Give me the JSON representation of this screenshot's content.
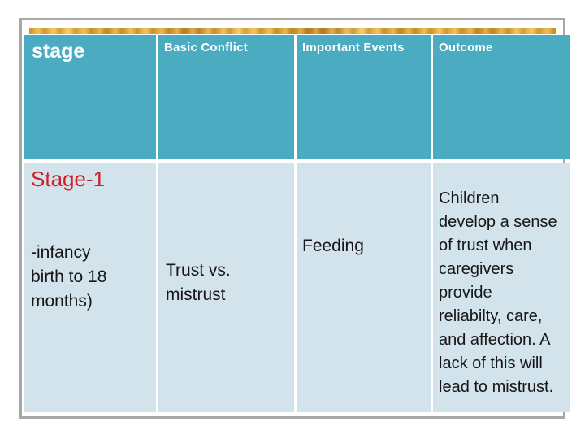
{
  "slide": {
    "kind": "presentation-table-slide",
    "colors": {
      "header_bg": "#4babc0",
      "body_bg": "#d3e3eb",
      "accent_red": "#cc2127",
      "frame_gray": "#a8a8a8",
      "gold_bar": "#e2a737",
      "header_text": "#ffffff",
      "body_text": "#161616"
    }
  },
  "table": {
    "columns": [
      {
        "header": "stage"
      },
      {
        "header": "Basic Conflict"
      },
      {
        "header": "Important Events"
      },
      {
        "header": "Outcome"
      }
    ],
    "row": {
      "stage_title": "Stage-1",
      "stage_detail": "-infancy\nbirth to 18\nmonths)",
      "basic_conflict": "Trust vs.\nmistrust",
      "important_events": "Feeding",
      "outcome": "Children\ndevelop a sense\nof trust when\ncaregivers\nprovide\nreliabilty, care,\nand affection. A\nlack of this will\nlead to mistrust."
    }
  }
}
